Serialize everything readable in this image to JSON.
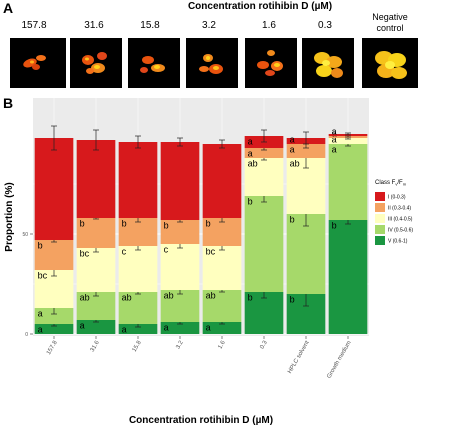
{
  "panel_a": {
    "letter": "A",
    "title": "Concentration rotihibin D (µM)",
    "concentrations": [
      "157.8",
      "31.6",
      "15.8",
      "3.2",
      "1.6",
      "0.3"
    ],
    "negative_label_line1": "Negative",
    "negative_label_line2": "control"
  },
  "panel_b": {
    "letter": "B"
  },
  "colors": {
    "I": "#d7191c",
    "II": "#f4a261",
    "III": "#ffffbf",
    "IV": "#a6d96a",
    "V": "#1a9641",
    "panel_bg": "#ebebeb"
  },
  "chart_data": {
    "type": "bar",
    "stacked": true,
    "title": "",
    "xlabel": "Concentration rotihibin D (µM)",
    "ylabel": "Proportion (%)",
    "ylim": [
      0,
      100
    ],
    "yticks": [
      "0",
      "50"
    ],
    "ytick_values": [
      0,
      50
    ],
    "categories": [
      "157.8",
      "31.6",
      "15.8",
      "3.2",
      "1.6",
      "0.3",
      "HPLC solvent",
      "Growth medium"
    ],
    "legend": {
      "title_main": "Class F",
      "title_sub1": "v",
      "title_mid": "/F",
      "title_sub2": "m",
      "placement": "right",
      "entries": [
        "I (0-0.3)",
        "II (0.3-0.4)",
        "III (0.4-0.5)",
        "IV (0.5-0.6)",
        "V (0.6-1)"
      ]
    },
    "series": [
      {
        "name": "V (0.6-1)",
        "key": "V",
        "values": [
          5,
          7,
          5,
          6,
          6,
          21,
          20,
          57
        ],
        "errors": [
          1,
          1,
          1.5,
          1,
          1,
          3,
          6,
          2
        ],
        "letters": [
          "a",
          "a",
          "a",
          "a",
          "a",
          "b",
          "b",
          "b"
        ]
      },
      {
        "name": "IV (0.5-0.6)",
        "key": "IV",
        "values": [
          8,
          14,
          16,
          16,
          16,
          48,
          40,
          38
        ],
        "errors": [
          3,
          2,
          1,
          2,
          1,
          3,
          6,
          1
        ],
        "letters": [
          "a",
          "ab",
          "ab",
          "ab",
          "ab",
          "b",
          "b",
          "a"
        ]
      },
      {
        "name": "III (0.4-0.5)",
        "key": "III",
        "values": [
          19,
          22,
          23,
          23,
          22,
          19,
          28,
          3
        ],
        "errors": [
          3,
          2,
          2,
          2,
          2,
          1,
          5,
          0.5
        ],
        "letters": [
          "bc",
          "bc",
          "c",
          "c",
          "bc",
          "ab",
          "ab",
          "a"
        ]
      },
      {
        "name": "II (0.3-0.4)",
        "key": "II",
        "values": [
          15,
          15,
          14,
          12,
          14,
          5,
          7,
          1
        ],
        "errors": [
          1,
          0.5,
          2,
          1,
          2,
          1,
          2,
          0.5
        ],
        "letters": [
          "b",
          "b",
          "b",
          "b",
          "b",
          "a",
          "a",
          "a"
        ]
      },
      {
        "name": "I (0-0.3)",
        "key": "I",
        "values": [
          51,
          39,
          38,
          39,
          37,
          6,
          3,
          1
        ],
        "errors": [
          6,
          5,
          3,
          2,
          2,
          3,
          3,
          0.5
        ],
        "letters": [
          "",
          "",
          "",
          "",
          "",
          "a",
          "a",
          "a"
        ]
      }
    ]
  }
}
